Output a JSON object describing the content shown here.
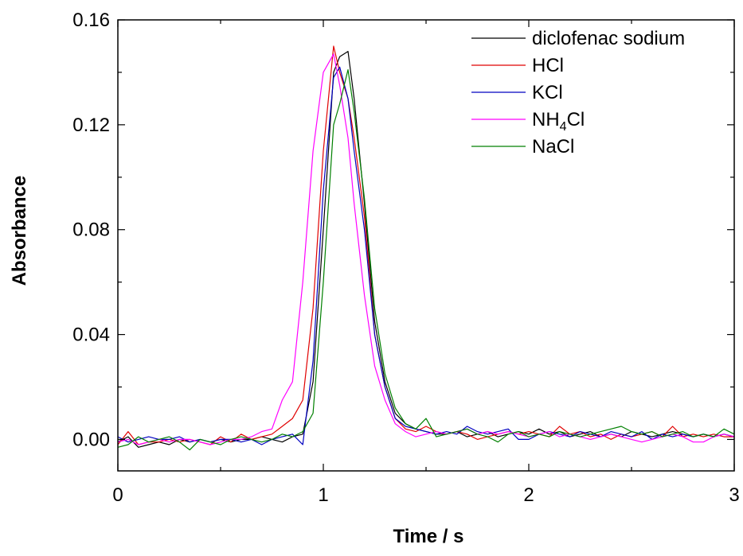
{
  "chart_data": {
    "type": "line",
    "title": "",
    "xlabel": "Time / s",
    "ylabel": "Absorbance",
    "xlim": [
      0,
      3
    ],
    "ylim": [
      -0.012,
      0.16
    ],
    "xticks": [
      0,
      1,
      2,
      3
    ],
    "xtick_labels": [
      "0",
      "1",
      "2",
      "3"
    ],
    "yticks": [
      0.0,
      0.04,
      0.08,
      0.12,
      0.16
    ],
    "ytick_labels": [
      "0.00",
      "0.04",
      "0.08",
      "0.12",
      "0.16"
    ],
    "grid": false,
    "legend_position": "top-right",
    "series": [
      {
        "name": "diclofenac sodium",
        "legend": {
          "base": "diclofenac sodium",
          "sub": "",
          "tail": ""
        },
        "color": "#000000",
        "x": [
          0,
          0.05,
          0.1,
          0.15,
          0.2,
          0.25,
          0.3,
          0.35,
          0.4,
          0.45,
          0.5,
          0.55,
          0.6,
          0.65,
          0.7,
          0.75,
          0.8,
          0.85,
          0.9,
          0.95,
          1.0,
          1.05,
          1.08,
          1.12,
          1.15,
          1.2,
          1.25,
          1.3,
          1.35,
          1.4,
          1.45,
          1.5,
          1.55,
          1.6,
          1.65,
          1.7,
          1.75,
          1.8,
          1.85,
          1.9,
          1.95,
          2.0,
          2.05,
          2.1,
          2.15,
          2.2,
          2.25,
          2.3,
          2.35,
          2.4,
          2.45,
          2.5,
          2.55,
          2.6,
          2.65,
          2.7,
          2.75,
          2.8,
          2.85,
          2.9,
          2.95,
          3.0
        ],
        "y": [
          -0.001,
          0.001,
          -0.003,
          -0.002,
          -0.001,
          -0.002,
          0.0,
          -0.001,
          0.0,
          -0.001,
          0.0,
          -0.001,
          0.0,
          0.0,
          0.001,
          0.0,
          -0.001,
          0.001,
          0.002,
          0.022,
          0.08,
          0.14,
          0.146,
          0.148,
          0.13,
          0.09,
          0.045,
          0.022,
          0.01,
          0.006,
          0.004,
          0.003,
          0.002,
          0.002,
          0.003,
          0.001,
          0.002,
          0.003,
          0.001,
          0.002,
          0.003,
          0.002,
          0.004,
          0.002,
          0.003,
          0.001,
          0.002,
          0.003,
          0.001,
          0.002,
          0.001,
          0.003,
          0.002,
          0.001,
          0.002,
          0.003,
          0.002,
          0.001,
          0.002,
          0.001,
          0.002,
          0.001
        ]
      },
      {
        "name": "HCl",
        "legend": {
          "base": "HCl",
          "sub": "",
          "tail": ""
        },
        "color": "#e00000",
        "x": [
          0,
          0.05,
          0.1,
          0.15,
          0.2,
          0.25,
          0.3,
          0.35,
          0.4,
          0.45,
          0.5,
          0.55,
          0.6,
          0.65,
          0.7,
          0.75,
          0.8,
          0.85,
          0.9,
          0.95,
          1.0,
          1.05,
          1.08,
          1.12,
          1.15,
          1.2,
          1.25,
          1.3,
          1.35,
          1.4,
          1.45,
          1.5,
          1.55,
          1.6,
          1.65,
          1.7,
          1.75,
          1.8,
          1.85,
          1.9,
          1.95,
          2.0,
          2.05,
          2.1,
          2.15,
          2.2,
          2.25,
          2.3,
          2.35,
          2.4,
          2.45,
          2.5,
          2.55,
          2.6,
          2.65,
          2.7,
          2.75,
          2.8,
          2.85,
          2.9,
          2.95,
          3.0
        ],
        "y": [
          -0.002,
          0.003,
          -0.002,
          -0.001,
          -0.001,
          0.0,
          -0.001,
          0.0,
          -0.001,
          -0.002,
          0.001,
          -0.001,
          0.002,
          0.0,
          0.001,
          0.002,
          0.005,
          0.008,
          0.015,
          0.05,
          0.11,
          0.15,
          0.14,
          0.13,
          0.115,
          0.085,
          0.04,
          0.02,
          0.008,
          0.004,
          0.003,
          0.005,
          0.003,
          0.002,
          0.003,
          0.002,
          0.0,
          0.001,
          0.002,
          0.003,
          0.002,
          0.003,
          0.002,
          0.001,
          0.005,
          0.002,
          0.003,
          0.001,
          0.002,
          0.0,
          0.002,
          0.001,
          0.002,
          0.003,
          0.001,
          0.005,
          0.001,
          0.002,
          0.001,
          0.002,
          0.001,
          0.001
        ]
      },
      {
        "name": "KCl",
        "legend": {
          "base": "KCl",
          "sub": "",
          "tail": ""
        },
        "color": "#0000c0",
        "x": [
          0,
          0.05,
          0.1,
          0.15,
          0.2,
          0.25,
          0.3,
          0.35,
          0.4,
          0.45,
          0.5,
          0.55,
          0.6,
          0.65,
          0.7,
          0.75,
          0.8,
          0.85,
          0.9,
          0.95,
          1.0,
          1.05,
          1.08,
          1.12,
          1.15,
          1.2,
          1.25,
          1.3,
          1.35,
          1.4,
          1.45,
          1.5,
          1.55,
          1.6,
          1.65,
          1.7,
          1.75,
          1.8,
          1.85,
          1.9,
          1.95,
          2.0,
          2.05,
          2.1,
          2.15,
          2.2,
          2.25,
          2.3,
          2.35,
          2.4,
          2.45,
          2.5,
          2.55,
          2.6,
          2.65,
          2.7,
          2.75,
          2.8,
          2.85,
          2.9,
          2.95,
          3.0
        ],
        "y": [
          0.001,
          -0.001,
          0.0,
          0.001,
          0.0,
          0.0,
          0.001,
          -0.001,
          0.0,
          -0.001,
          0.0,
          0.0,
          -0.001,
          0.0,
          -0.002,
          0.0,
          0.001,
          0.002,
          -0.002,
          0.03,
          0.095,
          0.138,
          0.142,
          0.13,
          0.11,
          0.08,
          0.04,
          0.02,
          0.008,
          0.005,
          0.004,
          0.003,
          0.002,
          0.003,
          0.002,
          0.005,
          0.003,
          0.002,
          0.003,
          0.004,
          0.0,
          0.0,
          0.002,
          0.003,
          0.002,
          0.001,
          0.003,
          0.002,
          0.001,
          0.003,
          0.002,
          0.001,
          0.003,
          0.0,
          0.002,
          0.001,
          0.002,
          0.001,
          0.002,
          0.001,
          0.002,
          0.001
        ]
      },
      {
        "name": "NH4Cl",
        "legend": {
          "base": "NH",
          "sub": "4",
          "tail": "Cl"
        },
        "color": "#ff00ff",
        "x": [
          0,
          0.05,
          0.1,
          0.15,
          0.2,
          0.25,
          0.3,
          0.35,
          0.4,
          0.45,
          0.5,
          0.55,
          0.6,
          0.65,
          0.7,
          0.75,
          0.8,
          0.85,
          0.9,
          0.95,
          1.0,
          1.05,
          1.08,
          1.12,
          1.15,
          1.2,
          1.25,
          1.3,
          1.35,
          1.4,
          1.45,
          1.5,
          1.55,
          1.6,
          1.65,
          1.7,
          1.75,
          1.8,
          1.85,
          1.9,
          1.95,
          2.0,
          2.05,
          2.1,
          2.15,
          2.2,
          2.25,
          2.3,
          2.35,
          2.4,
          2.45,
          2.5,
          2.55,
          2.6,
          2.65,
          2.7,
          2.75,
          2.8,
          2.85,
          2.9,
          2.95,
          3.0
        ],
        "y": [
          -0.001,
          0.0,
          -0.002,
          -0.001,
          0.0,
          -0.001,
          0.0,
          0.0,
          -0.001,
          -0.002,
          -0.001,
          0.0,
          0.0,
          0.001,
          0.003,
          0.004,
          0.015,
          0.022,
          0.06,
          0.11,
          0.14,
          0.147,
          0.135,
          0.115,
          0.09,
          0.055,
          0.028,
          0.015,
          0.006,
          0.003,
          0.001,
          0.002,
          0.003,
          0.002,
          0.003,
          0.004,
          0.002,
          0.003,
          0.002,
          0.003,
          0.002,
          0.001,
          0.002,
          0.003,
          0.001,
          0.002,
          0.001,
          0.0,
          0.001,
          0.002,
          0.001,
          0.0,
          -0.001,
          0.0,
          0.001,
          0.002,
          0.001,
          -0.001,
          -0.001,
          0.001,
          0.002,
          0.001
        ]
      },
      {
        "name": "NaCl",
        "legend": {
          "base": "NaCl",
          "sub": "",
          "tail": ""
        },
        "color": "#008000",
        "x": [
          0,
          0.05,
          0.1,
          0.15,
          0.2,
          0.25,
          0.3,
          0.35,
          0.4,
          0.45,
          0.5,
          0.55,
          0.6,
          0.65,
          0.7,
          0.75,
          0.8,
          0.85,
          0.9,
          0.95,
          1.0,
          1.05,
          1.08,
          1.12,
          1.15,
          1.2,
          1.25,
          1.3,
          1.35,
          1.4,
          1.45,
          1.5,
          1.55,
          1.6,
          1.65,
          1.7,
          1.75,
          1.8,
          1.85,
          1.9,
          1.95,
          2.0,
          2.05,
          2.1,
          2.15,
          2.2,
          2.25,
          2.3,
          2.35,
          2.4,
          2.45,
          2.5,
          2.55,
          2.6,
          2.65,
          2.7,
          2.75,
          2.8,
          2.85,
          2.9,
          2.95,
          3.0
        ],
        "y": [
          -0.003,
          -0.002,
          0.001,
          -0.001,
          0.0,
          0.001,
          -0.001,
          -0.004,
          0.0,
          -0.001,
          -0.002,
          0.0,
          0.001,
          0.0,
          -0.001,
          0.0,
          0.002,
          0.001,
          0.003,
          0.01,
          0.06,
          0.12,
          0.128,
          0.141,
          0.125,
          0.092,
          0.05,
          0.025,
          0.012,
          0.006,
          0.004,
          0.008,
          0.001,
          0.002,
          0.003,
          0.004,
          0.002,
          0.001,
          -0.001,
          0.002,
          0.003,
          0.001,
          0.002,
          0.001,
          0.003,
          0.002,
          0.001,
          0.002,
          0.003,
          0.004,
          0.005,
          0.003,
          0.002,
          0.003,
          0.001,
          0.002,
          0.003,
          0.001,
          0.002,
          0.001,
          0.004,
          0.002
        ]
      }
    ]
  }
}
